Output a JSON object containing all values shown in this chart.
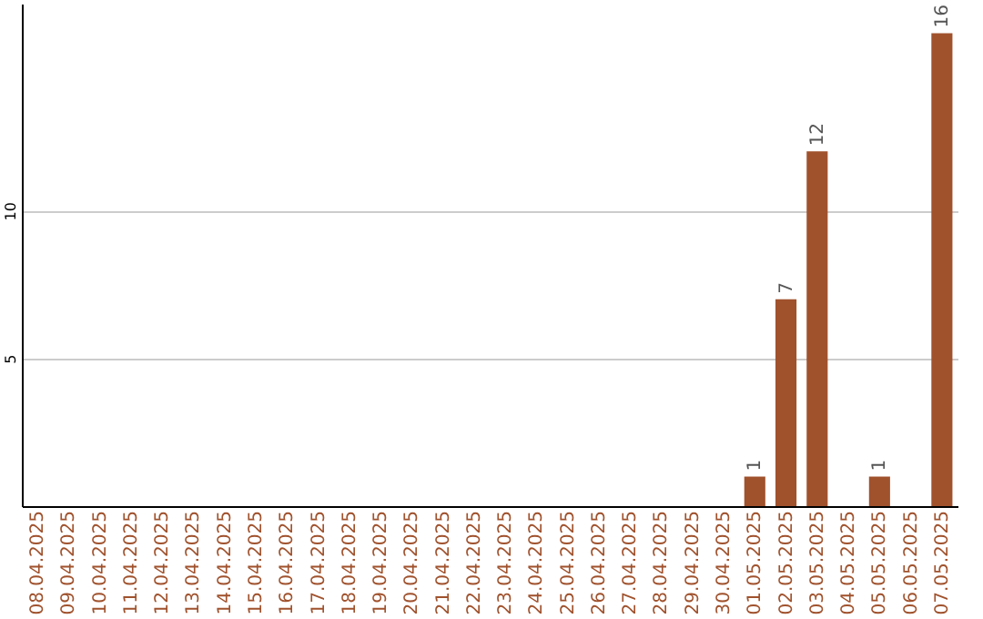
{
  "chart_data": {
    "type": "bar",
    "categories": [
      "08.04.2025",
      "09.04.2025",
      "10.04.2025",
      "11.04.2025",
      "12.04.2025",
      "13.04.2025",
      "14.04.2025",
      "15.04.2025",
      "16.04.2025",
      "17.04.2025",
      "18.04.2025",
      "19.04.2025",
      "20.04.2025",
      "21.04.2025",
      "22.04.2025",
      "23.04.2025",
      "24.04.2025",
      "25.04.2025",
      "26.04.2025",
      "27.04.2025",
      "28.04.2025",
      "29.04.2025",
      "30.04.2025",
      "01.05.2025",
      "02.05.2025",
      "03.05.2025",
      "04.05.2025",
      "05.05.2025",
      "06.05.2025",
      "07.05.2025"
    ],
    "values": [
      0,
      0,
      0,
      0,
      0,
      0,
      0,
      0,
      0,
      0,
      0,
      0,
      0,
      0,
      0,
      0,
      0,
      0,
      0,
      0,
      0,
      0,
      0,
      1,
      7,
      12,
      0,
      1,
      0,
      16
    ],
    "value_labels": [
      null,
      null,
      null,
      null,
      null,
      null,
      null,
      null,
      null,
      null,
      null,
      null,
      null,
      null,
      null,
      null,
      null,
      null,
      null,
      null,
      null,
      null,
      null,
      "1",
      "7",
      "12",
      null,
      "1",
      null,
      "16"
    ],
    "color": "#a0522d",
    "ylim": [
      0,
      17
    ],
    "yticks": [
      5,
      10
    ],
    "grid": "y"
  }
}
